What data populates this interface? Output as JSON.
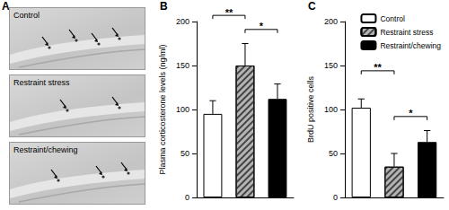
{
  "panel_a": {
    "label": "A",
    "images": [
      {
        "label": "Control"
      },
      {
        "label": "Restraint stress"
      },
      {
        "label": "Restraint/chewing"
      }
    ]
  },
  "chart_data": [
    {
      "type": "bar",
      "panel_label": "B",
      "ylabel": "Plasma corticosterone levels (ng/ml)",
      "categories": [
        null,
        null,
        null
      ],
      "values": [
        95,
        150,
        112
      ],
      "errors": [
        15,
        25,
        17
      ],
      "colors": [
        "#ffffff",
        "#b4b4b4",
        "#000000"
      ],
      "ylim": [
        0,
        200
      ],
      "yticks": [
        0,
        50,
        100,
        150,
        200
      ],
      "grid": false,
      "tick_labels": "y",
      "annotations": [
        {
          "from": 0,
          "to": 1,
          "text": "**"
        },
        {
          "from": 1,
          "to": 2,
          "text": "*"
        }
      ]
    },
    {
      "type": "bar",
      "panel_label": "C",
      "ylabel": "BrdU positive cells",
      "categories": [
        null,
        null,
        null
      ],
      "series": [
        {
          "name": "Control",
          "color": "#ffffff",
          "values": [
            102,
            null,
            null
          ],
          "errors": [
            10,
            null,
            null
          ]
        },
        {
          "name": "Restraint stress",
          "color": "#b4b4b4",
          "values": [
            null,
            35,
            null
          ],
          "errors": [
            null,
            15,
            null
          ]
        },
        {
          "name": "Restraint/chewing",
          "color": "#000000",
          "values": [
            null,
            null,
            63
          ],
          "errors": [
            null,
            null,
            13
          ]
        }
      ],
      "ylim": [
        0,
        200
      ],
      "yticks": [
        0,
        50,
        100,
        150,
        200
      ],
      "grid": false,
      "tick_labels": "y",
      "legend": "upper right",
      "annotations": [
        {
          "from": 0,
          "to": 1,
          "text": "**"
        },
        {
          "from": 1,
          "to": 2,
          "text": "*"
        }
      ]
    }
  ]
}
